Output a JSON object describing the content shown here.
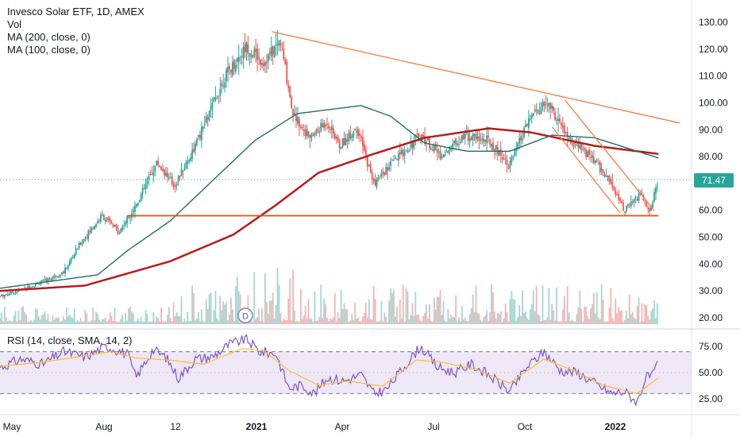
{
  "legend": {
    "title": "Invesco Solar ETF, 1D, AMEX",
    "vol": "Vol",
    "ma200": "MA (200, close, 0)",
    "ma100": "MA (100, close, 0)"
  },
  "rsi_legend": "RSI (14, close, SMA, 14, 2)",
  "last_price": "71.47",
  "dividend_marker": "D",
  "colors": {
    "up": "#26a69a",
    "down": "#ef5350",
    "ma200": "#b71c1c",
    "ma100": "#1f6f6a",
    "trendline": "#f57c42",
    "support": "#e65100",
    "rsi": "#7e57c2",
    "rsi_ma": "#fbc02d",
    "rsi_band": "#ede7f6"
  },
  "chart_data": [
    {
      "type": "candlestick",
      "title": "Invesco Solar ETF, 1D, AMEX",
      "x_ticks": [
        "May",
        "Aug",
        "12",
        "2021",
        "Apr",
        "Jul",
        "Oct",
        "2022"
      ],
      "y_ticks": [
        "130.00",
        "120.00",
        "110.00",
        "100.00",
        "90.00",
        "80.00",
        "70.00",
        "60.00",
        "50.00",
        "40.00",
        "30.00",
        "20.00"
      ],
      "ylim": [
        16.5,
        134
      ],
      "price_path": [
        {
          "t": 0,
          "v": 28
        },
        {
          "t": 6,
          "v": 31
        },
        {
          "t": 11,
          "v": 34
        },
        {
          "t": 15,
          "v": 37
        },
        {
          "t": 19,
          "v": 48
        },
        {
          "t": 24,
          "v": 58
        },
        {
          "t": 28,
          "v": 52
        },
        {
          "t": 32,
          "v": 62
        },
        {
          "t": 37,
          "v": 78
        },
        {
          "t": 41,
          "v": 69
        },
        {
          "t": 46,
          "v": 84
        },
        {
          "t": 53,
          "v": 110
        },
        {
          "t": 58,
          "v": 121
        },
        {
          "t": 62,
          "v": 115
        },
        {
          "t": 66,
          "v": 123
        },
        {
          "t": 69,
          "v": 96
        },
        {
          "t": 73,
          "v": 87
        },
        {
          "t": 77,
          "v": 93
        },
        {
          "t": 80,
          "v": 84
        },
        {
          "t": 84,
          "v": 91
        },
        {
          "t": 88,
          "v": 70
        },
        {
          "t": 92,
          "v": 77
        },
        {
          "t": 99,
          "v": 88
        },
        {
          "t": 104,
          "v": 80
        },
        {
          "t": 109,
          "v": 88
        },
        {
          "t": 115,
          "v": 86
        },
        {
          "t": 120,
          "v": 77
        },
        {
          "t": 125,
          "v": 95
        },
        {
          "t": 129,
          "v": 100
        },
        {
          "t": 134,
          "v": 86
        },
        {
          "t": 139,
          "v": 80
        },
        {
          "t": 144,
          "v": 70
        },
        {
          "t": 147,
          "v": 60
        },
        {
          "t": 151,
          "v": 66
        },
        {
          "t": 153,
          "v": 60
        },
        {
          "t": 155,
          "v": 71.47
        }
      ],
      "moving_averages": [
        {
          "name": "MA (200, close, 0)",
          "points": [
            {
              "t": 0,
              "v": 30
            },
            {
              "t": 20,
              "v": 32
            },
            {
              "t": 40,
              "v": 41
            },
            {
              "t": 55,
              "v": 51
            },
            {
              "t": 65,
              "v": 62
            },
            {
              "t": 75,
              "v": 74
            },
            {
              "t": 88,
              "v": 81
            },
            {
              "t": 100,
              "v": 87
            },
            {
              "t": 115,
              "v": 90.5
            },
            {
              "t": 125,
              "v": 89
            },
            {
              "t": 140,
              "v": 84
            },
            {
              "t": 155,
              "v": 81
            }
          ]
        },
        {
          "name": "MA (100, close, 0)",
          "points": [
            {
              "t": 0,
              "v": 31
            },
            {
              "t": 23,
              "v": 36
            },
            {
              "t": 30,
              "v": 45
            },
            {
              "t": 40,
              "v": 56
            },
            {
              "t": 50,
              "v": 71
            },
            {
              "t": 60,
              "v": 86
            },
            {
              "t": 70,
              "v": 96
            },
            {
              "t": 85,
              "v": 99
            },
            {
              "t": 92,
              "v": 95
            },
            {
              "t": 100,
              "v": 85
            },
            {
              "t": 110,
              "v": 82
            },
            {
              "t": 120,
              "v": 82
            },
            {
              "t": 130,
              "v": 88
            },
            {
              "t": 140,
              "v": 87
            },
            {
              "t": 155,
              "v": 79.5
            }
          ]
        }
      ],
      "drawings": [
        {
          "name": "descending-resistance",
          "from": {
            "t": 64,
            "v": 126.5
          },
          "to": {
            "t": 160,
            "v": 92.5
          }
        },
        {
          "name": "horizontal-support",
          "from": {
            "t": 30,
            "v": 58
          },
          "to": {
            "t": 155,
            "v": 58
          }
        },
        {
          "name": "channel-upper",
          "from": {
            "t": 133,
            "v": 101
          },
          "to": {
            "t": 154,
            "v": 60
          }
        },
        {
          "name": "channel-lower",
          "from": {
            "t": 130,
            "v": 91
          },
          "to": {
            "t": 146,
            "v": 59
          }
        }
      ],
      "last_price": 71.47
    },
    {
      "type": "line",
      "title": "RSI (14, close, SMA, 14, 2)",
      "y_ticks": [
        "75.00",
        "50.00",
        "25.00"
      ],
      "ylim": [
        12,
        88
      ],
      "bands": [
        30,
        70
      ],
      "rsi_path": [
        {
          "t": 0,
          "v": 55
        },
        {
          "t": 5,
          "v": 63
        },
        {
          "t": 10,
          "v": 58
        },
        {
          "t": 15,
          "v": 70
        },
        {
          "t": 20,
          "v": 65
        },
        {
          "t": 25,
          "v": 75
        },
        {
          "t": 30,
          "v": 68
        },
        {
          "t": 32,
          "v": 45
        },
        {
          "t": 36,
          "v": 72
        },
        {
          "t": 39,
          "v": 65
        },
        {
          "t": 42,
          "v": 45
        },
        {
          "t": 46,
          "v": 63
        },
        {
          "t": 50,
          "v": 65
        },
        {
          "t": 54,
          "v": 77
        },
        {
          "t": 58,
          "v": 82
        },
        {
          "t": 61,
          "v": 70
        },
        {
          "t": 65,
          "v": 68
        },
        {
          "t": 68,
          "v": 35
        },
        {
          "t": 71,
          "v": 38
        },
        {
          "t": 74,
          "v": 30
        },
        {
          "t": 77,
          "v": 45
        },
        {
          "t": 81,
          "v": 42
        },
        {
          "t": 85,
          "v": 48
        },
        {
          "t": 88,
          "v": 30
        },
        {
          "t": 91,
          "v": 34
        },
        {
          "t": 95,
          "v": 55
        },
        {
          "t": 99,
          "v": 75
        },
        {
          "t": 103,
          "v": 55
        },
        {
          "t": 107,
          "v": 50
        },
        {
          "t": 111,
          "v": 58
        },
        {
          "t": 115,
          "v": 48
        },
        {
          "t": 120,
          "v": 32
        },
        {
          "t": 124,
          "v": 55
        },
        {
          "t": 128,
          "v": 70
        },
        {
          "t": 132,
          "v": 52
        },
        {
          "t": 136,
          "v": 50
        },
        {
          "t": 140,
          "v": 40
        },
        {
          "t": 144,
          "v": 30
        },
        {
          "t": 147,
          "v": 32
        },
        {
          "t": 150,
          "v": 22
        },
        {
          "t": 152,
          "v": 45
        },
        {
          "t": 154,
          "v": 48
        },
        {
          "t": 155,
          "v": 62
        }
      ],
      "sma_path": [
        {
          "t": 0,
          "v": 56
        },
        {
          "t": 10,
          "v": 60
        },
        {
          "t": 20,
          "v": 66
        },
        {
          "t": 26,
          "v": 70
        },
        {
          "t": 32,
          "v": 64
        },
        {
          "t": 40,
          "v": 62
        },
        {
          "t": 48,
          "v": 58
        },
        {
          "t": 57,
          "v": 73
        },
        {
          "t": 62,
          "v": 71
        },
        {
          "t": 68,
          "v": 52
        },
        {
          "t": 75,
          "v": 38
        },
        {
          "t": 82,
          "v": 42
        },
        {
          "t": 90,
          "v": 37
        },
        {
          "t": 98,
          "v": 62
        },
        {
          "t": 104,
          "v": 60
        },
        {
          "t": 112,
          "v": 53
        },
        {
          "t": 120,
          "v": 40
        },
        {
          "t": 128,
          "v": 63
        },
        {
          "t": 135,
          "v": 52
        },
        {
          "t": 142,
          "v": 38
        },
        {
          "t": 150,
          "v": 30
        },
        {
          "t": 155,
          "v": 45
        }
      ]
    }
  ]
}
